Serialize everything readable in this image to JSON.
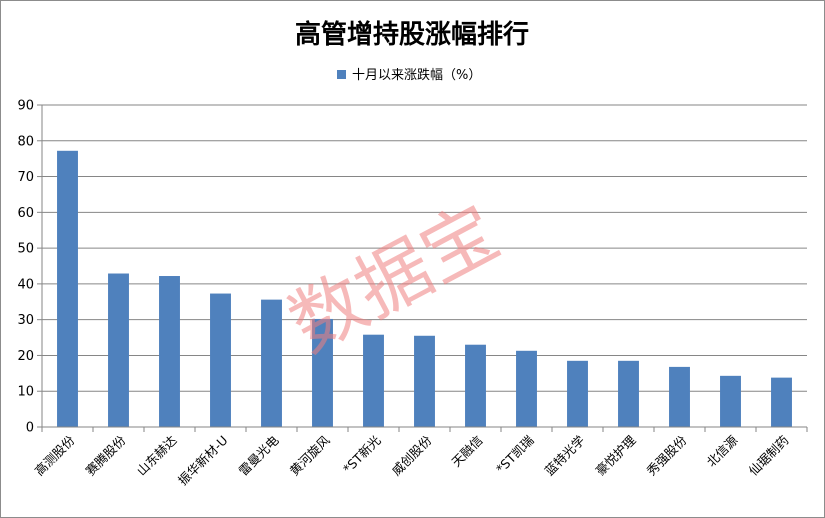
{
  "chart_data": {
    "type": "bar",
    "title": "高管增持股涨幅排行",
    "categories": [
      "高测股份",
      "赛腾股份",
      "山东赫达",
      "振华新材-U",
      "雷曼光电",
      "黄河旋风",
      "*ST新光",
      "威创股份",
      "天融信",
      "*ST凯瑞",
      "蓝特光学",
      "豪悦护理",
      "秀强股份",
      "北信源",
      "仙琚制药"
    ],
    "series": [
      {
        "name": "十月以来涨跌幅（%）",
        "values": [
          77.2,
          42.9,
          42.2,
          37.3,
          35.6,
          30.2,
          25.8,
          25.5,
          23.0,
          21.3,
          18.5,
          18.5,
          16.8,
          14.3,
          13.8
        ]
      }
    ],
    "ylim": [
      0,
      90
    ],
    "yticks": [
      0,
      10,
      20,
      30,
      40,
      50,
      60,
      70,
      80,
      90
    ],
    "grid": true,
    "legend_position": "top-center",
    "colors": {
      "bar": "#4f81bd",
      "grid": "#868686",
      "axis": "#868686"
    },
    "watermark": "数据宝"
  }
}
